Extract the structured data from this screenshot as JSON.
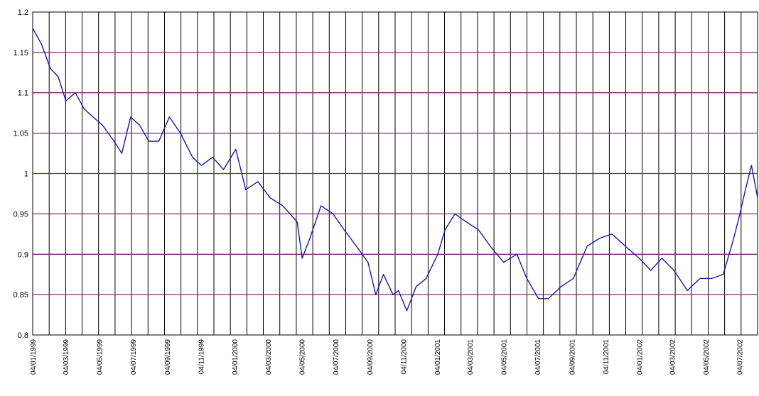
{
  "chart_data": {
    "type": "line",
    "title": "",
    "xlabel": "",
    "ylabel": "",
    "ylim": [
      0.8,
      1.2
    ],
    "y_ticks": [
      "1.2",
      "1.15",
      "1.1",
      "1.05",
      "1",
      "0.95",
      "0.9",
      "0.85",
      "0.8"
    ],
    "x_tick_labels": [
      "04/01/1999",
      "04/03/1999",
      "04/05/1999",
      "04/07/1999",
      "04/09/1999",
      "04/11/1999",
      "04/01/2000",
      "04/03/2000",
      "04/05/2000",
      "04/07/2000",
      "04/09/2000",
      "04/11/2000",
      "04/01/2001",
      "04/03/2001",
      "04/05/2001",
      "04/07/2001",
      "04/09/2001",
      "04/11/2001",
      "04/01/2002",
      "04/03/2002",
      "04/05/2002",
      "04/07/2002"
    ],
    "grid": {
      "horizontal": true,
      "vertical": true
    },
    "colors": {
      "line": "#1a1a9c",
      "h_grid": "#7a2a7a",
      "v_grid": "#000000"
    },
    "series": [
      {
        "x": [
          "04/01/1999",
          "20/01/1999",
          "05/02/1999",
          "19/02/1999",
          "05/03/1999",
          "22/03/1999",
          "07/04/1999",
          "23/04/1999",
          "10/05/1999",
          "31/05/1999",
          "14/06/1999",
          "30/06/1999",
          "16/07/1999",
          "02/08/1999",
          "20/08/1999",
          "08/09/1999",
          "28/09/1999",
          "20/10/1999",
          "05/11/1999",
          "25/11/1999",
          "15/12/1999",
          "06/01/2000",
          "24/01/2000",
          "15/02/2000",
          "08/03/2000",
          "31/03/2000",
          "26/04/2000",
          "05/05/2000",
          "19/05/2000",
          "08/06/2000",
          "30/06/2000",
          "20/07/2000",
          "11/08/2000",
          "01/09/2000",
          "15/09/2000",
          "29/09/2000",
          "16/10/2000",
          "26/10/2000",
          "10/11/2000",
          "27/11/2000",
          "15/12/2000",
          "05/01/2001",
          "18/01/2001",
          "05/02/2001",
          "26/02/2001",
          "20/03/2001",
          "10/04/2001",
          "04/05/2001",
          "28/05/2001",
          "15/06/2001",
          "06/07/2001",
          "24/07/2001",
          "16/08/2001",
          "07/09/2001",
          "02/10/2001",
          "25/10/2001",
          "16/11/2001",
          "10/12/2001",
          "04/01/2002",
          "25/01/2002",
          "14/02/2002",
          "08/03/2002",
          "01/04/2002",
          "24/04/2002",
          "15/05/2002",
          "05/06/2002",
          "24/06/2002",
          "05/07/2002",
          "15/07/2002",
          "26/07/2002",
          "06/08/2002"
        ],
        "values": [
          1.18,
          1.16,
          1.13,
          1.12,
          1.09,
          1.1,
          1.08,
          1.07,
          1.06,
          1.04,
          1.025,
          1.07,
          1.06,
          1.04,
          1.04,
          1.07,
          1.05,
          1.02,
          1.01,
          1.02,
          1.005,
          1.03,
          0.98,
          0.99,
          0.97,
          0.96,
          0.94,
          0.895,
          0.92,
          0.96,
          0.95,
          0.93,
          0.91,
          0.89,
          0.85,
          0.875,
          0.85,
          0.855,
          0.83,
          0.86,
          0.87,
          0.9,
          0.93,
          0.95,
          0.94,
          0.93,
          0.91,
          0.89,
          0.9,
          0.87,
          0.845,
          0.845,
          0.86,
          0.87,
          0.91,
          0.92,
          0.925,
          0.91,
          0.895,
          0.88,
          0.895,
          0.88,
          0.855,
          0.87,
          0.87,
          0.875,
          0.92,
          0.95,
          0.98,
          1.01,
          0.97
        ]
      }
    ]
  }
}
